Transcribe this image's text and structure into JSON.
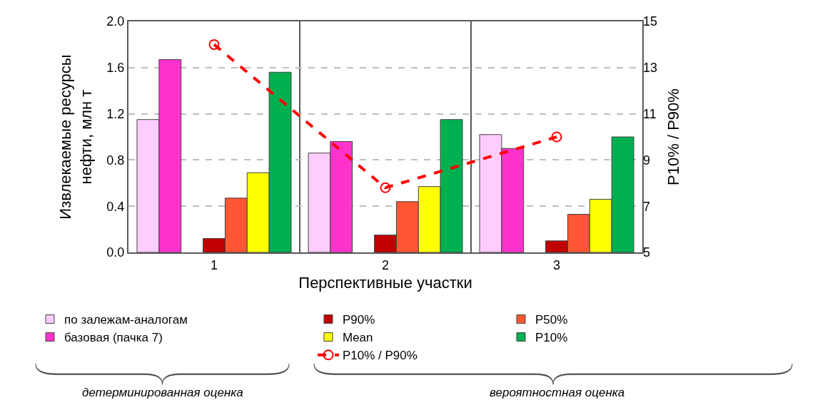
{
  "chart_data": {
    "type": "bar",
    "categories": [
      "1",
      "2",
      "3"
    ],
    "xlabel": "Перспективные участки",
    "ylabel": "Извлекаемые ресурсы\nнефти, млн т",
    "y2label": "P10% / P90%",
    "ylim": [
      0,
      2.0
    ],
    "yticks": [
      {
        "value": 0,
        "label": "0.0"
      },
      0.4,
      0.8,
      1.2,
      1.6,
      {
        "value": 2,
        "label": "2.0"
      }
    ],
    "y2lim": [
      5,
      15
    ],
    "y2ticks": [
      5,
      7,
      9,
      11,
      13,
      15
    ],
    "grid": true,
    "legend": "bottom",
    "series": [
      {
        "name": "по залежам-аналогам",
        "color": "#ffccff",
        "values": [
          1.15,
          0.86,
          1.02
        ]
      },
      {
        "name": "базовая (пачка 7)",
        "color": "#ff33cc",
        "values": [
          1.67,
          0.96,
          0.9
        ]
      },
      {
        "name": "P90%",
        "color": "#c00000",
        "values": [
          0.12,
          0.15,
          0.1
        ]
      },
      {
        "name": "P50%",
        "color": "#ff5733",
        "values": [
          0.47,
          0.44,
          0.33
        ]
      },
      {
        "name": "Mean",
        "color": "#ffff00",
        "values": [
          0.69,
          0.57,
          0.46
        ]
      },
      {
        "name": "P10%",
        "color": "#00b050",
        "values": [
          1.56,
          1.15,
          1.0
        ]
      },
      {
        "name": "P10% / P90%",
        "color": "#ff0000",
        "type": "line",
        "axis": "y2",
        "marker": "circle",
        "line_style": "dashed",
        "values": [
          14,
          7.8,
          10
        ]
      }
    ],
    "annotations": [
      "детерминированная оценка",
      "вероятностная оценка"
    ]
  }
}
